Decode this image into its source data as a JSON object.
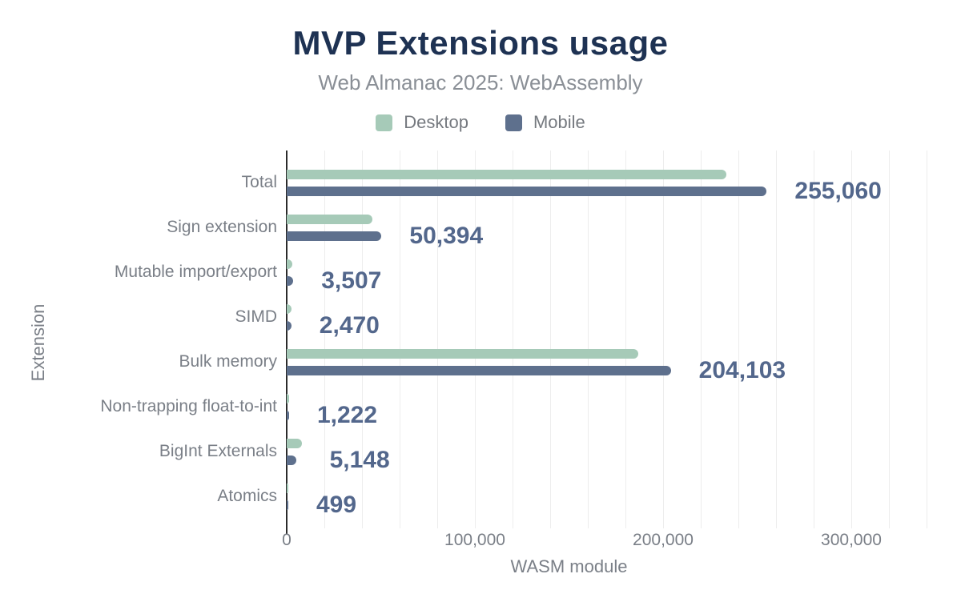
{
  "chart_data": {
    "type": "bar",
    "orientation": "horizontal",
    "title": "MVP Extensions usage",
    "subtitle": "Web Almanac 2025: WebAssembly",
    "xlabel": "WASM module",
    "ylabel": "Extension",
    "xlim": [
      0,
      340000
    ],
    "gridline_interval": 20000,
    "grid": "vertical",
    "legend_position": "top",
    "x_ticks": [
      {
        "value": 0,
        "label": "0"
      },
      {
        "value": 100000,
        "label": "100,000"
      },
      {
        "value": 200000,
        "label": "200,000"
      },
      {
        "value": 300000,
        "label": "300,000"
      }
    ],
    "categories": [
      "Total",
      "Sign extension",
      "Mutable import/export",
      "SIMD",
      "Bulk memory",
      "Non-trapping float-to-int",
      "BigInt Externals",
      "Atomics"
    ],
    "series": [
      {
        "name": "Desktop",
        "color": "#a6cab8",
        "values": [
          233500,
          45500,
          3100,
          2350,
          187000,
          1250,
          7900,
          450
        ]
      },
      {
        "name": "Mobile",
        "color": "#5e708d",
        "values": [
          255060,
          50394,
          3507,
          2470,
          204103,
          1222,
          5148,
          499
        ]
      }
    ],
    "value_labels": [
      "255,060",
      "50,394",
      "3,507",
      "2,470",
      "204,103",
      "1,222",
      "5,148",
      "499"
    ]
  },
  "colors": {
    "title": "#1e3253",
    "subtitle": "#8a8f96",
    "axis_text": "#7a7f87",
    "legend_text": "#75797f",
    "value_label": "#53678c",
    "gridline": "#ededed",
    "axis_line": "#2b2b2b",
    "background": "#ffffff"
  }
}
